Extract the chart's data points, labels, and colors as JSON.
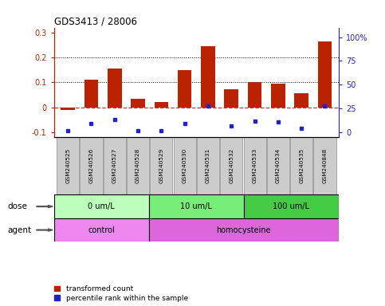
{
  "title": "GDS3413 / 28006",
  "samples": [
    "GSM240525",
    "GSM240526",
    "GSM240527",
    "GSM240528",
    "GSM240529",
    "GSM240530",
    "GSM240531",
    "GSM240532",
    "GSM240533",
    "GSM240534",
    "GSM240535",
    "GSM240848"
  ],
  "red_values": [
    -0.01,
    0.11,
    0.155,
    0.035,
    0.02,
    0.148,
    0.245,
    0.072,
    0.1,
    0.095,
    0.058,
    0.265
  ],
  "blue_values": [
    -0.095,
    -0.065,
    -0.048,
    -0.095,
    -0.095,
    -0.065,
    0.005,
    -0.075,
    -0.055,
    -0.058,
    -0.085,
    0.005
  ],
  "ylim_left": [
    -0.12,
    0.32
  ],
  "ylim_right": [
    -5,
    110
  ],
  "yticks_left": [
    -0.1,
    0.0,
    0.1,
    0.2,
    0.3
  ],
  "yticks_right": [
    0,
    25,
    50,
    75,
    100
  ],
  "ytick_labels_left": [
    "-0.1",
    "0",
    "0.1",
    "0.2",
    "0.3"
  ],
  "ytick_labels_right": [
    "0",
    "25",
    "50",
    "75",
    "100%"
  ],
  "red_color": "#bb2200",
  "blue_color": "#2222cc",
  "dashed_line_color": "#cc3333",
  "dose_groups": [
    {
      "label": "0 um/L",
      "start": 0,
      "end": 4,
      "color": "#bbffbb"
    },
    {
      "label": "10 um/L",
      "start": 4,
      "end": 8,
      "color": "#77ee77"
    },
    {
      "label": "100 um/L",
      "start": 8,
      "end": 12,
      "color": "#44cc44"
    }
  ],
  "agent_groups": [
    {
      "label": "control",
      "start": 0,
      "end": 4,
      "color": "#ee88ee"
    },
    {
      "label": "homocysteine",
      "start": 4,
      "end": 12,
      "color": "#dd66dd"
    }
  ],
  "dose_label": "dose",
  "agent_label": "agent",
  "legend_red": "transformed count",
  "legend_blue": "percentile rank within the sample",
  "bar_width": 0.6,
  "dotted_line_y": [
    0.1,
    0.2
  ],
  "sample_box_color": "#cccccc",
  "sample_box_edge": "#888888"
}
